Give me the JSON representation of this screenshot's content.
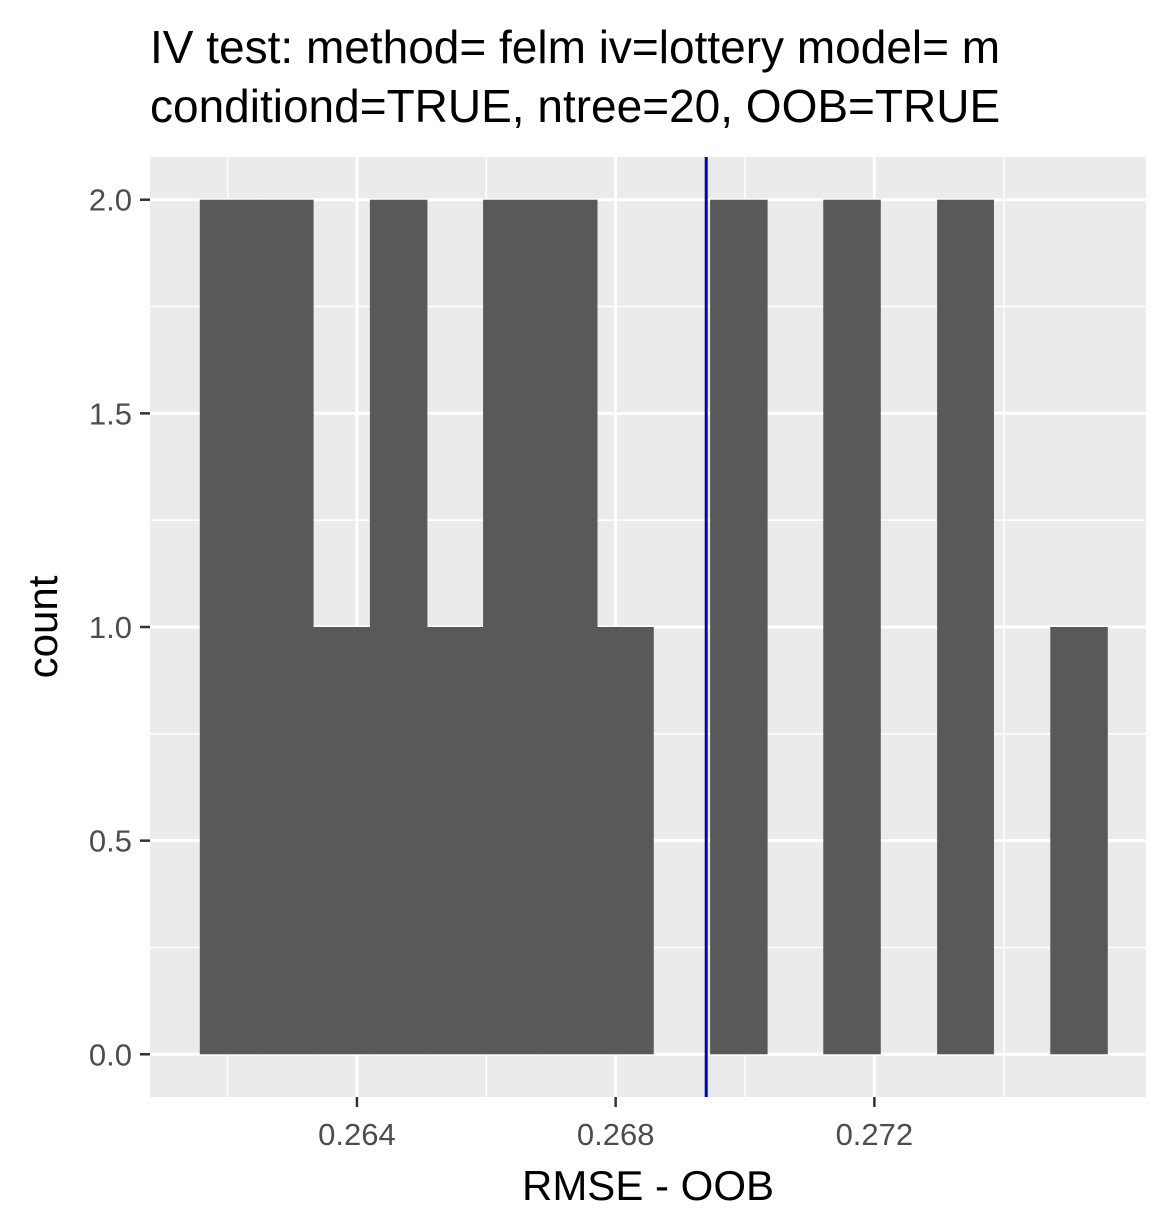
{
  "chart_data": {
    "type": "histogram",
    "title_lines": [
      "IV test: method= felm iv=lottery model= m",
      "conditiond=TRUE, ntree=20, OOB=TRUE"
    ],
    "xlabel": "RMSE - OOB",
    "ylabel": "count",
    "xlim": [
      0.2608,
      0.2762
    ],
    "ylim": [
      -0.1,
      2.1
    ],
    "x_ticks": [
      0.264,
      0.268,
      0.272
    ],
    "x_tick_labels": [
      "0.264",
      "0.268",
      "0.272"
    ],
    "y_ticks": [
      0.0,
      0.5,
      1.0,
      1.5,
      2.0
    ],
    "y_tick_labels": [
      "0.0",
      "0.5",
      "1.0",
      "1.5",
      "2.0"
    ],
    "bin_width": 0.000877,
    "bins": [
      {
        "x0": 0.26157,
        "x1": 0.26245,
        "count": 2
      },
      {
        "x0": 0.26245,
        "x1": 0.26332,
        "count": 2
      },
      {
        "x0": 0.26332,
        "x1": 0.2642,
        "count": 1
      },
      {
        "x0": 0.2642,
        "x1": 0.26508,
        "count": 2
      },
      {
        "x0": 0.26508,
        "x1": 0.26595,
        "count": 1
      },
      {
        "x0": 0.26595,
        "x1": 0.26683,
        "count": 2
      },
      {
        "x0": 0.26683,
        "x1": 0.26771,
        "count": 2
      },
      {
        "x0": 0.26771,
        "x1": 0.26858,
        "count": 1
      },
      {
        "x0": 0.26858,
        "x1": 0.26946,
        "count": 0
      },
      {
        "x0": 0.26946,
        "x1": 0.27034,
        "count": 2
      },
      {
        "x0": 0.27034,
        "x1": 0.27121,
        "count": 0
      },
      {
        "x0": 0.27121,
        "x1": 0.27209,
        "count": 2
      },
      {
        "x0": 0.27209,
        "x1": 0.27297,
        "count": 0
      },
      {
        "x0": 0.27297,
        "x1": 0.27384,
        "count": 2
      },
      {
        "x0": 0.27384,
        "x1": 0.27472,
        "count": 0
      },
      {
        "x0": 0.27472,
        "x1": 0.2756,
        "count": 1
      }
    ],
    "vline_x": 0.2694,
    "grid": true,
    "colors": {
      "panel_bg": "#ebebeb",
      "grid_major": "#ffffff",
      "bar_fill": "#595959",
      "vline": "#0000cd",
      "tick_text": "#4d4d4d"
    }
  }
}
